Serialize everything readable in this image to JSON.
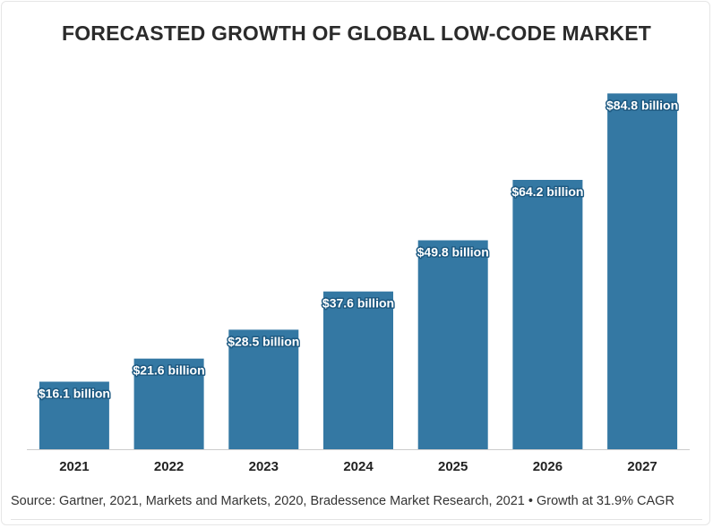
{
  "title": "FORECASTED GROWTH OF GLOBAL LOW-CODE MARKET",
  "source": "Source: Gartner, 2021, Markets and Markets, 2020, Bradessence Market Research, 2021 • Growth at 31.9% CAGR",
  "colors": {
    "bar": "#3478a3",
    "label_fill": "#ffffff",
    "label_outline": "#1e5a82",
    "axis": "#cccccc",
    "text": "#222222"
  },
  "chart_data": {
    "type": "bar",
    "title": "FORECASTED GROWTH OF GLOBAL LOW-CODE MARKET",
    "xlabel": "",
    "ylabel": "",
    "categories": [
      "2021",
      "2022",
      "2023",
      "2024",
      "2025",
      "2026",
      "2027"
    ],
    "values": [
      16.1,
      21.6,
      28.5,
      37.6,
      49.8,
      64.2,
      84.8
    ],
    "data_labels": [
      "$16.1 billion",
      "$21.6 billion",
      "$28.5 billion",
      "$37.6 billion",
      "$49.8 billion",
      "$64.2 billion",
      "$84.8 billion"
    ],
    "ylim": [
      0,
      90
    ],
    "grid": false,
    "legend": "none"
  }
}
